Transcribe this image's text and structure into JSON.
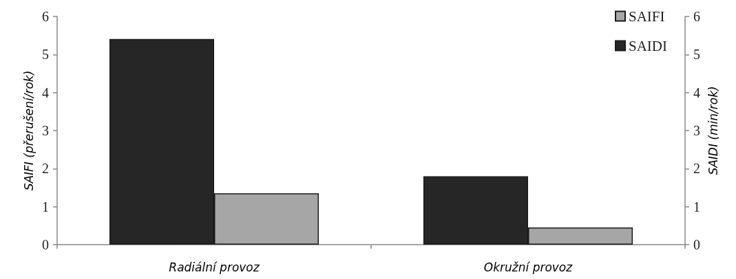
{
  "chart_data": {
    "type": "bar",
    "categories": [
      "Radiální provoz",
      "Okružní provoz"
    ],
    "ylabel": "SAIFI (přerušení/rok)",
    "y2label": "SAIDI (min/rok)",
    "ylim": [
      0,
      6
    ],
    "yticks": [
      0,
      1,
      2,
      3,
      4,
      5,
      6
    ],
    "y2lim": [
      0,
      6
    ],
    "y2ticks": [
      0,
      1,
      2,
      3,
      4,
      5,
      6
    ],
    "series": [
      {
        "name": "SAIFI",
        "color": "#a6a6a6",
        "values": [
          1.35,
          0.45
        ]
      },
      {
        "name": "SAIDI",
        "color": "#262626",
        "values": [
          5.41,
          1.8
        ]
      }
    ],
    "legend": "top right",
    "grid": false
  }
}
